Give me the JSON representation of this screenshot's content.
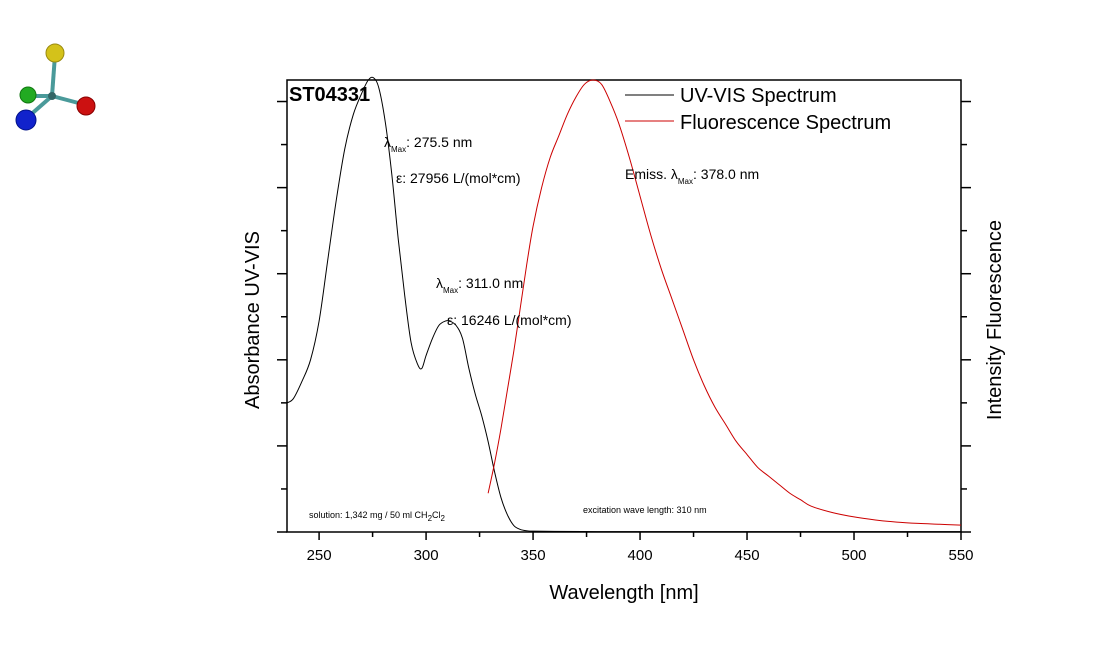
{
  "chart_data": {
    "type": "line",
    "title": "ST04331",
    "xlabel": "Wavelength [nm]",
    "ylabel_left": "Absorbance UV-VIS",
    "ylabel_right": "Intensity Fluorescence",
    "xlim": [
      235,
      550
    ],
    "ylim": [
      0,
      1.05
    ],
    "x_ticks": [
      250,
      300,
      350,
      400,
      450,
      500,
      550
    ],
    "legend": {
      "position": "top-right",
      "entries": [
        {
          "label": "UV-VIS Spectrum",
          "color": "#000000"
        },
        {
          "label": "Fluorescence Spectrum",
          "color": "#cc0000"
        }
      ]
    },
    "series": [
      {
        "name": "UV-VIS Spectrum",
        "color": "#000000",
        "x": [
          235,
          238,
          242,
          246,
          250,
          254,
          258,
          262,
          266,
          270,
          273,
          275.5,
          278,
          281,
          284,
          287,
          290,
          293,
          296,
          298,
          300,
          303,
          306,
          309,
          311,
          314,
          317,
          320,
          323,
          326,
          329,
          332,
          335,
          338,
          341,
          344,
          347,
          350,
          360,
          380,
          400,
          450,
          500,
          550
        ],
        "y": [
          0.3,
          0.31,
          0.35,
          0.4,
          0.49,
          0.63,
          0.77,
          0.89,
          0.97,
          1.02,
          1.05,
          1.055,
          1.03,
          0.95,
          0.83,
          0.68,
          0.55,
          0.44,
          0.39,
          0.38,
          0.41,
          0.45,
          0.48,
          0.49,
          0.49,
          0.48,
          0.45,
          0.38,
          0.32,
          0.27,
          0.21,
          0.14,
          0.08,
          0.04,
          0.015,
          0.006,
          0.003,
          0.002,
          0.0015,
          0.001,
          0.001,
          0.001,
          0.001,
          0.001
        ]
      },
      {
        "name": "Fluorescence Spectrum",
        "color": "#cc0000",
        "x": [
          329,
          332,
          335,
          338,
          341,
          344,
          347,
          350,
          354,
          358,
          362,
          366,
          370,
          374,
          378,
          382,
          386,
          390,
          395,
          400,
          405,
          410,
          415,
          420,
          425,
          430,
          435,
          440,
          445,
          450,
          455,
          460,
          465,
          470,
          475,
          480,
          490,
          500,
          510,
          520,
          530,
          540,
          550
        ],
        "y": [
          0.09,
          0.16,
          0.24,
          0.33,
          0.42,
          0.52,
          0.62,
          0.71,
          0.8,
          0.87,
          0.92,
          0.97,
          1.01,
          1.04,
          1.05,
          1.04,
          1.0,
          0.95,
          0.87,
          0.78,
          0.69,
          0.61,
          0.54,
          0.47,
          0.4,
          0.34,
          0.29,
          0.25,
          0.21,
          0.18,
          0.15,
          0.13,
          0.11,
          0.09,
          0.075,
          0.06,
          0.045,
          0.035,
          0.028,
          0.023,
          0.02,
          0.018,
          0.016
        ]
      }
    ],
    "annotations": {
      "peak1_lambda_sym": "λ",
      "peak1_lambda_sub": "Max",
      "peak1_lambda_value": ": 275.5 nm",
      "peak1_eps": "ε: 27956 L/(mol*cm)",
      "peak2_lambda_sym": "λ",
      "peak2_lambda_sub": "Max",
      "peak2_lambda_value": ": 311.0 nm",
      "peak2_eps": "ε: 16246 L/(mol*cm)",
      "emiss_prefix": "Emiss. λ",
      "emiss_sub": "Max",
      "emiss_value": ": 378.0 nm",
      "solution_main": "solution: 1,342 mg / 50 ml CH",
      "solution_sub1": "2",
      "solution_mid": "Cl",
      "solution_sub2": "2",
      "excitation": "excitation wave length: 310  nm"
    }
  },
  "logo": {
    "name": "molecule-logo",
    "colors": [
      "#d4c21a",
      "#22aa22",
      "#cc1111",
      "#1122cc",
      "#4a9a9a"
    ]
  }
}
